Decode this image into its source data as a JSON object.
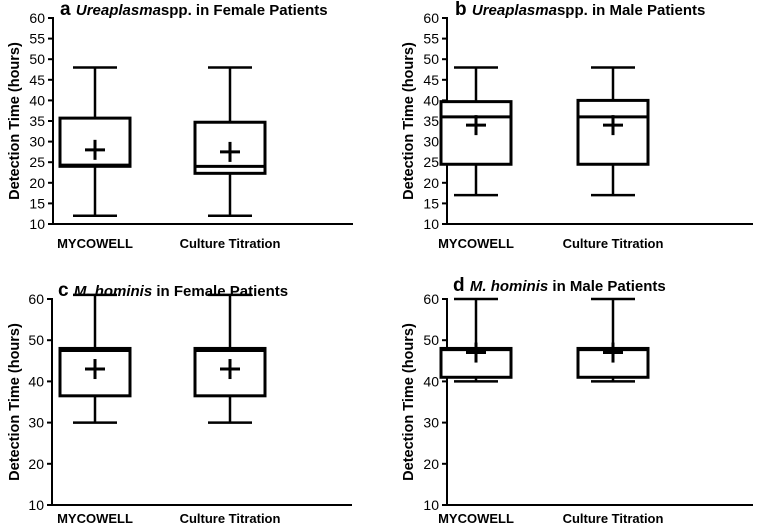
{
  "chart_data": [
    {
      "type": "boxplot",
      "panel": "a",
      "title_italic": "Ureaplasma",
      "title_rest": "spp. in Female Patients",
      "xlabel": "",
      "ylabel": "Detection Time (hours)",
      "ylim": [
        10,
        60
      ],
      "yticks": [
        10,
        15,
        20,
        25,
        30,
        35,
        40,
        45,
        50,
        55,
        60
      ],
      "categories": [
        "MYCOWELL",
        "Culture Titration"
      ],
      "boxes": [
        {
          "min": 12,
          "q1": 24,
          "median": 24.3,
          "q3": 35.7,
          "max": 48,
          "mean": 28
        },
        {
          "min": 12,
          "q1": 22.3,
          "median": 24,
          "q3": 34.7,
          "max": 48,
          "mean": 27.5
        }
      ]
    },
    {
      "type": "boxplot",
      "panel": "b",
      "title_italic": "Ureaplasma",
      "title_rest": "spp. in Male Patients",
      "xlabel": "",
      "ylabel": "Detection Time (hours)",
      "ylim": [
        10,
        60
      ],
      "yticks": [
        10,
        15,
        20,
        25,
        30,
        35,
        40,
        45,
        50,
        55,
        60
      ],
      "categories": [
        "MYCOWELL",
        "Culture Titration"
      ],
      "boxes": [
        {
          "min": 17,
          "q1": 24.5,
          "median": 36,
          "q3": 39.7,
          "max": 48,
          "mean": 34
        },
        {
          "min": 17,
          "q1": 24.5,
          "median": 36,
          "q3": 40,
          "max": 48,
          "mean": 34
        }
      ]
    },
    {
      "type": "boxplot",
      "panel": "c",
      "title_italic": "M. hominis",
      "title_rest": " in Female Patients",
      "xlabel": "",
      "ylabel": "Detection Time (hours)",
      "ylim": [
        10,
        60
      ],
      "yticks": [
        10,
        20,
        30,
        40,
        50,
        60
      ],
      "categories": [
        "MYCOWELL",
        "Culture Titration"
      ],
      "boxes": [
        {
          "min": 30,
          "q1": 36.5,
          "median": 47.5,
          "q3": 48,
          "max": 61,
          "mean": 43
        },
        {
          "min": 30,
          "q1": 36.5,
          "median": 47.5,
          "q3": 48,
          "max": 61,
          "mean": 43
        }
      ]
    },
    {
      "type": "boxplot",
      "panel": "d",
      "title_italic": "M. hominis",
      "title_rest": " in Male Patients",
      "xlabel": "",
      "ylabel": "Detection Time (hours)",
      "ylim": [
        10,
        60
      ],
      "yticks": [
        10,
        20,
        30,
        40,
        50,
        60
      ],
      "categories": [
        "MYCOWELL",
        "Culture Titration"
      ],
      "boxes": [
        {
          "min": 40,
          "q1": 41,
          "median": 47.7,
          "q3": 48,
          "max": 60,
          "mean": 47
        },
        {
          "min": 40,
          "q1": 41,
          "median": 47.7,
          "q3": 48,
          "max": 60,
          "mean": 47
        }
      ]
    }
  ]
}
